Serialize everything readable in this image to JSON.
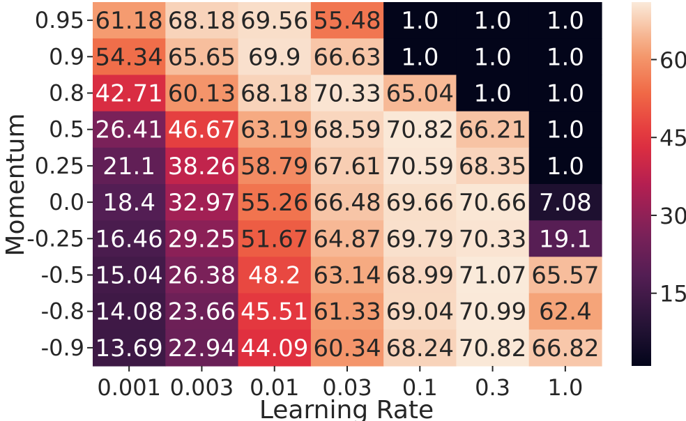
{
  "chart_data": {
    "type": "heatmap",
    "xlabel": "Learning Rate",
    "ylabel": "Momentum",
    "x_categories": [
      "0.001",
      "0.003",
      "0.01",
      "0.03",
      "0.1",
      "0.3",
      "1.0"
    ],
    "y_categories": [
      "0.95",
      "0.9",
      "0.8",
      "0.5",
      "0.25",
      "0.0",
      "-0.25",
      "-0.5",
      "-0.8",
      "-0.9"
    ],
    "values": [
      [
        61.18,
        68.18,
        69.56,
        55.48,
        1.0,
        1.0,
        1.0
      ],
      [
        54.34,
        65.65,
        69.9,
        66.63,
        1.0,
        1.0,
        1.0
      ],
      [
        42.71,
        60.13,
        68.18,
        70.33,
        65.04,
        1.0,
        1.0
      ],
      [
        26.41,
        46.67,
        63.19,
        68.59,
        70.82,
        66.21,
        1.0
      ],
      [
        21.1,
        38.26,
        58.79,
        67.61,
        70.59,
        68.35,
        1.0
      ],
      [
        18.4,
        32.97,
        55.26,
        66.48,
        69.66,
        70.66,
        7.08
      ],
      [
        16.46,
        29.25,
        51.67,
        64.87,
        69.79,
        70.33,
        19.1
      ],
      [
        15.04,
        26.38,
        48.2,
        63.14,
        68.99,
        71.07,
        65.57
      ],
      [
        14.08,
        23.66,
        45.51,
        61.33,
        69.04,
        70.99,
        62.4
      ],
      [
        13.69,
        22.94,
        44.09,
        60.34,
        68.24,
        70.82,
        66.82
      ]
    ],
    "value_labels": [
      [
        "61.18",
        "68.18",
        "69.56",
        "55.48",
        "1.0",
        "1.0",
        "1.0"
      ],
      [
        "54.34",
        "65.65",
        "69.9",
        "66.63",
        "1.0",
        "1.0",
        "1.0"
      ],
      [
        "42.71",
        "60.13",
        "68.18",
        "70.33",
        "65.04",
        "1.0",
        "1.0"
      ],
      [
        "26.41",
        "46.67",
        "63.19",
        "68.59",
        "70.82",
        "66.21",
        "1.0"
      ],
      [
        "21.1",
        "38.26",
        "58.79",
        "67.61",
        "70.59",
        "68.35",
        "1.0"
      ],
      [
        "18.4",
        "32.97",
        "55.26",
        "66.48",
        "69.66",
        "70.66",
        "7.08"
      ],
      [
        "16.46",
        "29.25",
        "51.67",
        "64.87",
        "69.79",
        "70.33",
        "19.1"
      ],
      [
        "15.04",
        "26.38",
        "48.2",
        "63.14",
        "68.99",
        "71.07",
        "65.57"
      ],
      [
        "14.08",
        "23.66",
        "45.51",
        "61.33",
        "69.04",
        "70.99",
        "62.4"
      ],
      [
        "13.69",
        "22.94",
        "44.09",
        "60.34",
        "68.24",
        "70.82",
        "66.82"
      ]
    ],
    "colorbar": {
      "colormap": "rocket",
      "vmin": 1.0,
      "vmax": 71.07,
      "ticks": [
        15,
        30,
        45,
        60
      ],
      "tick_labels": [
        "15",
        "30",
        "45",
        "60"
      ]
    },
    "grid": false,
    "legend": "none"
  }
}
